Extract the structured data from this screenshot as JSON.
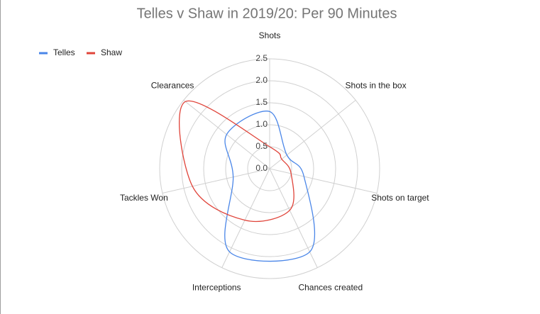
{
  "chart_data": {
    "type": "radar",
    "title": "Telles v Shaw in 2019/20: Per 90 Minutes",
    "categories": [
      "Shots",
      "Shots in the box",
      "Shots on target",
      "Chances created",
      "Interceptions",
      "Tackles Won",
      "Clearances"
    ],
    "series": [
      {
        "name": "Telles",
        "color": "#4a86e8",
        "values": [
          1.3,
          0.5,
          0.8,
          2.1,
          2.1,
          0.85,
          1.25
        ]
      },
      {
        "name": "Shaw",
        "color": "#e0443a",
        "values": [
          0.5,
          0.35,
          0.5,
          1.05,
          1.3,
          1.8,
          2.45
        ]
      }
    ],
    "ylim": [
      0,
      2.5
    ],
    "yticks": [
      {
        "value": 0,
        "label": "0.0"
      },
      0.5,
      {
        "value": 1,
        "label": "1.0"
      },
      1.5,
      {
        "value": 2,
        "label": "2.0"
      },
      2.5
    ],
    "grid": true,
    "legend": "top-left",
    "smooth": true
  }
}
